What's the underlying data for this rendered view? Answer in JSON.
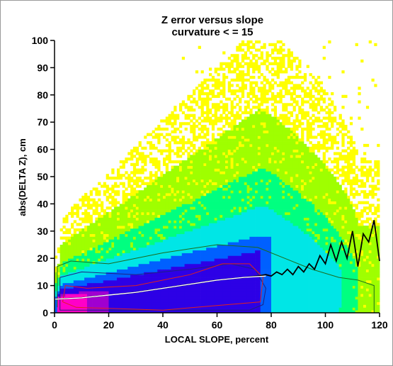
{
  "chart_data": {
    "type": "heatmap",
    "title": "Z error versus slope",
    "subtitle": "curvature < = 15",
    "xlabel": "LOCAL SLOPE, percent",
    "ylabel": "abs(DELTA Z), cm",
    "xlim": [
      0,
      120
    ],
    "ylim": [
      0,
      100
    ],
    "xticks": [
      0,
      20,
      40,
      60,
      80,
      100,
      120
    ],
    "yticks": [
      0,
      10,
      20,
      30,
      40,
      50,
      60,
      70,
      80,
      90,
      100
    ],
    "density_colormap": [
      "#ffff00",
      "#9fff00",
      "#00ff80",
      "#00e6e6",
      "#0060ff",
      "#2d00e6",
      "#a000d0",
      "#ff00c8"
    ],
    "series": [
      {
        "name": "",
        "type": "line",
        "color": "#000000",
        "x": [
          0,
          10,
          20,
          30,
          40,
          50,
          60,
          70,
          75,
          78,
          80,
          82,
          84,
          86,
          88,
          90,
          92,
          94,
          96,
          98,
          100,
          102,
          104,
          106,
          108,
          110,
          112,
          114,
          116,
          118,
          120
        ],
        "y": [
          5,
          5.5,
          6.5,
          7.5,
          9,
          10.5,
          12,
          13,
          13.5,
          14,
          13.5,
          15,
          14,
          16,
          14,
          17,
          15,
          18,
          16,
          21,
          18,
          25,
          19,
          26,
          20,
          30,
          17,
          29,
          26,
          34,
          19
        ]
      }
    ]
  }
}
